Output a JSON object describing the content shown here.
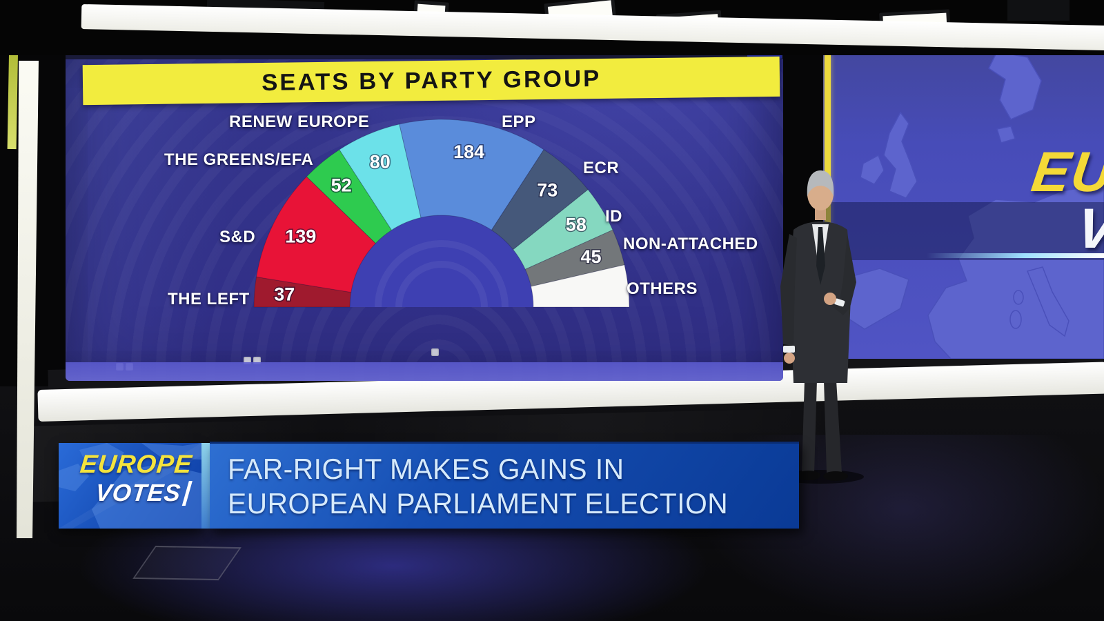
{
  "screen": {
    "title": "SEATS BY PARTY GROUP"
  },
  "chart_data": {
    "type": "pie",
    "subtype": "semicircle-donut-hemicycle",
    "title": "SEATS BY PARTY GROUP",
    "orientation": "180-degree half circle, first segment starts at left baseline, last segment ends at right baseline",
    "legend_position": "labels placed around the outside of the arc",
    "categories": [
      "THE LEFT",
      "S&D",
      "THE GREENS/EFA",
      "RENEW EUROPE",
      "EPP",
      "ECR",
      "ID",
      "NON-ATTACHED",
      "OTHERS"
    ],
    "values": [
      37,
      139,
      52,
      80,
      184,
      73,
      58,
      45,
      52
    ],
    "segments": [
      {
        "name": "THE LEFT",
        "value": 37,
        "color": "#9f1a2e",
        "value_label_visible": true
      },
      {
        "name": "S&D",
        "value": 139,
        "color": "#e81337",
        "value_label_visible": true
      },
      {
        "name": "THE GREENS/EFA",
        "value": 52,
        "color": "#2ecb4f",
        "value_label_visible": true
      },
      {
        "name": "RENEW EUROPE",
        "value": 80,
        "color": "#6ce1e9",
        "value_label_visible": true
      },
      {
        "name": "EPP",
        "value": 184,
        "color": "#5a8cdb",
        "value_label_visible": true
      },
      {
        "name": "ECR",
        "value": 73,
        "color": "#45587a",
        "value_label_visible": true
      },
      {
        "name": "ID",
        "value": 58,
        "color": "#85d8c0",
        "value_label_visible": true
      },
      {
        "name": "NON-ATTACHED",
        "value": 45,
        "color": "#73777a",
        "value_label_visible": true
      },
      {
        "name": "OTHERS",
        "value": 52,
        "color": "#f8f8f6",
        "value_label_visible": false,
        "value_estimated_from_wedge_angle": true
      }
    ]
  },
  "side_panel": {
    "partial_text_line1": "EU",
    "partial_text_line2": "V"
  },
  "lower_third": {
    "badge_line1": "EUROPE",
    "badge_line2": "VOTES",
    "headline_line1": "FAR-RIGHT MAKES GAINS IN",
    "headline_line2": "EUROPEAN PARLIAMENT ELECTION"
  },
  "colors": {
    "title_bar_bg": "#f2ec3e",
    "title_text": "#141414",
    "screen_bg": "#35368e",
    "headline_bar_blue": "#154eb2",
    "headline_text": "#d6eafb",
    "badge_yellow": "#f4e33d",
    "map_sea": "#474cb8",
    "map_land": "#5d64cd",
    "accent_cyan_line": "#9fe1ff"
  }
}
